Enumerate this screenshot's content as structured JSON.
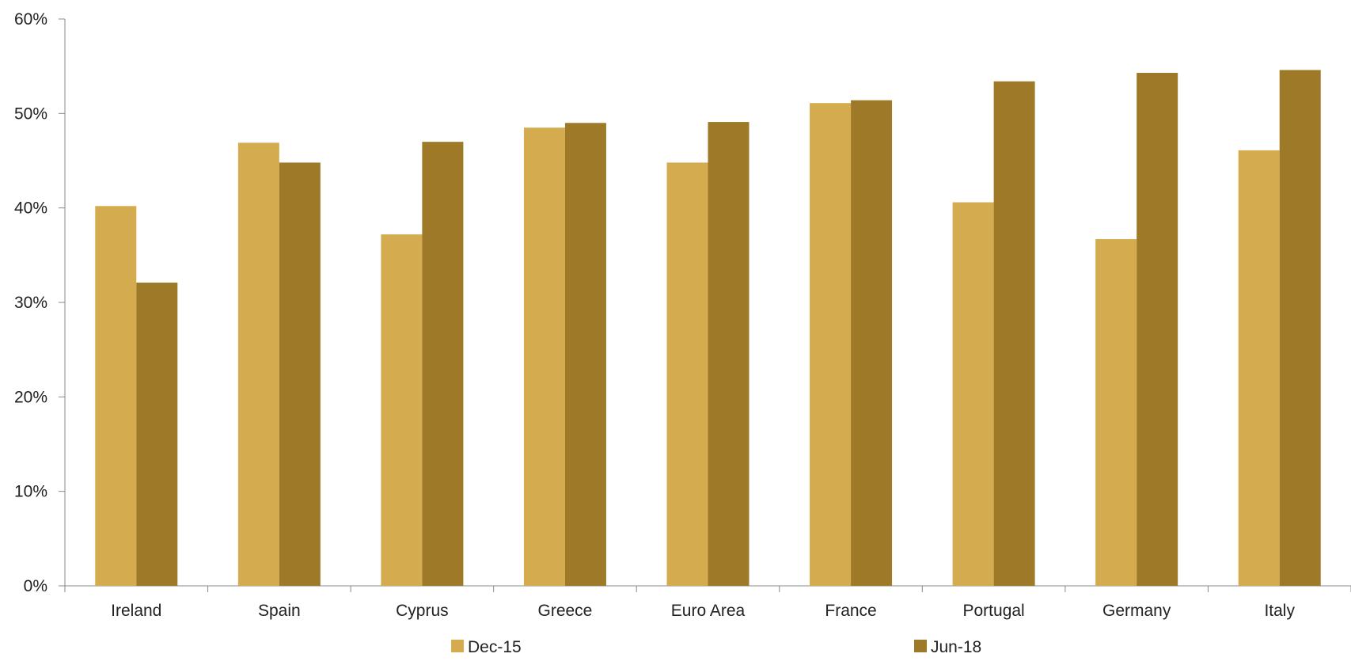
{
  "chart_data": {
    "type": "bar",
    "title": "",
    "xlabel": "",
    "ylabel": "",
    "categories": [
      "Ireland",
      "Spain",
      "Cyprus",
      "Greece",
      "Euro Area",
      "France",
      "Portugal",
      "Germany",
      "Italy"
    ],
    "series": [
      {
        "name": "Dec-15",
        "color": "#D4AC4F",
        "values": [
          40.2,
          46.9,
          37.2,
          48.5,
          44.8,
          51.1,
          40.6,
          36.7,
          46.1
        ]
      },
      {
        "name": "Jun-18",
        "color": "#9E7A28",
        "values": [
          32.1,
          44.8,
          47.0,
          49.0,
          49.1,
          51.4,
          53.4,
          54.3,
          54.6
        ]
      }
    ],
    "ylim": [
      0,
      60
    ],
    "yticks": [
      0,
      10,
      20,
      30,
      40,
      50,
      60
    ],
    "ytick_format": "percent",
    "grid": false,
    "legend_position": "bottom"
  }
}
